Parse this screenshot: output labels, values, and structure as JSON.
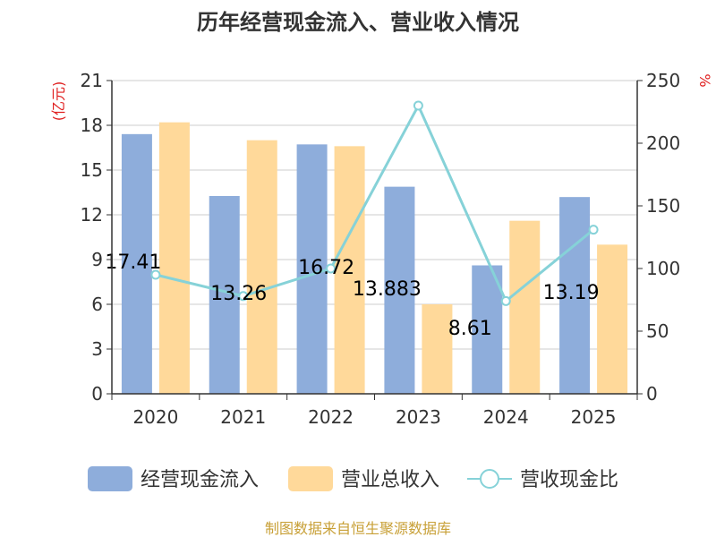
{
  "chart_data": {
    "type": "bar",
    "title": "历年经营现金流入、营业收入情况",
    "categories": [
      "2020",
      "2021",
      "2022",
      "2023",
      "2024",
      "2025"
    ],
    "y_left": {
      "unit": "(亿元)",
      "ylim": [
        0,
        21
      ],
      "ticks": [
        0,
        3,
        6,
        9,
        12,
        15,
        18,
        21
      ]
    },
    "y_right": {
      "unit": "%",
      "ylim": [
        0,
        250
      ],
      "ticks": [
        0,
        50,
        100,
        150,
        200,
        250
      ]
    },
    "series": [
      {
        "name": "经营现金流入",
        "type": "bar",
        "axis": "left",
        "color": "#8eaddb",
        "values": [
          17.41,
          13.26,
          16.72,
          13.883,
          8.61,
          13.19
        ]
      },
      {
        "name": "营业总收入",
        "type": "bar",
        "axis": "left",
        "color": "#ffd99a",
        "values": [
          18.2,
          17.0,
          16.6,
          6.0,
          11.6,
          10.0
        ]
      },
      {
        "name": "营收现金比",
        "type": "line",
        "axis": "right",
        "color": "#86d2d8",
        "values": [
          95,
          78,
          100,
          230,
          74,
          131
        ]
      }
    ],
    "data_labels": [
      "17.41",
      "13.26",
      "16.72",
      "13.883",
      "8.61",
      "13.19"
    ],
    "grid": true,
    "legend_position": "bottom"
  },
  "footer": "制图数据来自恒生聚源数据库"
}
